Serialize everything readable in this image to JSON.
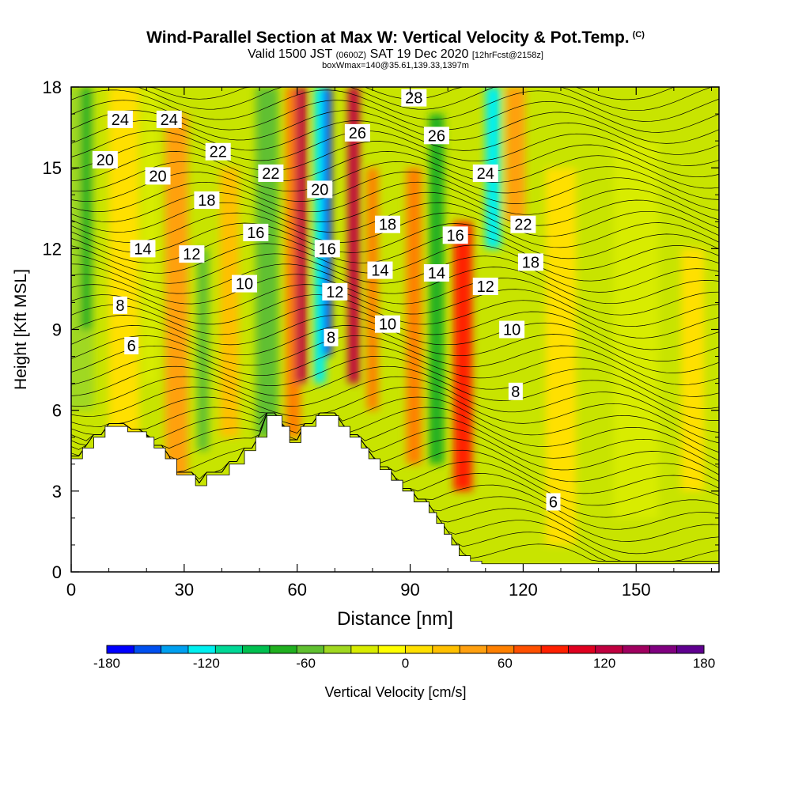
{
  "header": {
    "title": "Wind-Parallel Section at Max W: Vertical Velocity & Pot.Temp.",
    "copyright": "(C)",
    "valid_prefix": "Valid 1500 JST",
    "valid_utc": "(0600Z)",
    "valid_date": "SAT 19 Dec 2020",
    "forecast_info": "[12hrFcst@2158z]",
    "box_info": "boxWmax=140@35.61,139.33,1397m"
  },
  "chart_data": {
    "type": "heatmap",
    "title": "Wind-Parallel Section at Max W: Vertical Velocity & Pot.Temp.",
    "xlabel": "Distance [nm]",
    "ylabel": "Height [Kft MSL]",
    "xlim": [
      0,
      172
    ],
    "ylim": [
      0,
      18
    ],
    "xticks": [
      0,
      30,
      60,
      90,
      120,
      150
    ],
    "yticks": [
      0,
      3,
      6,
      9,
      12,
      15,
      18
    ],
    "colorbar": {
      "label": "Vertical Velocity [cm/s]",
      "range": [
        -180,
        180
      ],
      "tick_labels": [
        "-180",
        "-120",
        "-60",
        "0",
        "60",
        "120",
        "180"
      ],
      "colors": [
        "#0000ff",
        "#0050f0",
        "#00a0f0",
        "#00f0f0",
        "#00d896",
        "#00c050",
        "#20b020",
        "#60c030",
        "#a0d820",
        "#d8ec00",
        "#ffff00",
        "#ffe000",
        "#ffc000",
        "#ffa010",
        "#ff8000",
        "#ff5000",
        "#ff2000",
        "#e00020",
        "#c00040",
        "#a00060",
        "#800080",
        "#600090"
      ]
    },
    "vertical_velocity_columns": [
      {
        "x": 2,
        "width": 8,
        "w": -40,
        "ymin": 6,
        "ymax": 18
      },
      {
        "x": 4,
        "width": 3,
        "w": -80,
        "ymin": 9,
        "ymax": 18
      },
      {
        "x": 14,
        "width": 8,
        "w": 15,
        "ymin": 5,
        "ymax": 18
      },
      {
        "x": 21,
        "width": 4,
        "w": -30,
        "ymin": 7,
        "ymax": 18
      },
      {
        "x": 28,
        "width": 6,
        "w": 40,
        "ymin": 3.5,
        "ymax": 17
      },
      {
        "x": 35,
        "width": 3,
        "w": -50,
        "ymin": 4.5,
        "ymax": 12
      },
      {
        "x": 42,
        "width": 5,
        "w": 30,
        "ymin": 5,
        "ymax": 15
      },
      {
        "x": 52,
        "width": 6,
        "w": -60,
        "ymin": 5,
        "ymax": 18
      },
      {
        "x": 59,
        "width": 4,
        "w": 60,
        "ymin": 5,
        "ymax": 18
      },
      {
        "x": 61,
        "width": 3,
        "w": 130,
        "ymin": 7,
        "ymax": 18
      },
      {
        "x": 66,
        "width": 3,
        "w": -130,
        "ymin": 7,
        "ymax": 18
      },
      {
        "x": 68,
        "width": 2,
        "w": -180,
        "ymin": 8,
        "ymax": 18
      },
      {
        "x": 75,
        "width": 3,
        "w": 120,
        "ymin": 7,
        "ymax": 18
      },
      {
        "x": 80,
        "width": 3,
        "w": 60,
        "ymin": 6,
        "ymax": 15
      },
      {
        "x": 91,
        "width": 4,
        "w": 50,
        "ymin": 4,
        "ymax": 15
      },
      {
        "x": 97,
        "width": 4,
        "w": -70,
        "ymin": 4,
        "ymax": 17
      },
      {
        "x": 104,
        "width": 5,
        "w": 90,
        "ymin": 3,
        "ymax": 13
      },
      {
        "x": 112,
        "width": 4,
        "w": -120,
        "ymin": 12,
        "ymax": 18
      },
      {
        "x": 118,
        "width": 5,
        "w": 40,
        "ymin": 13,
        "ymax": 18
      },
      {
        "x": 130,
        "width": 8,
        "w": 15,
        "ymin": 1,
        "ymax": 15
      },
      {
        "x": 150,
        "width": 12,
        "w": -25,
        "ymin": 2,
        "ymax": 16
      },
      {
        "x": 165,
        "width": 6,
        "w": 10,
        "ymin": 3,
        "ymax": 12
      }
    ],
    "terrain": [
      [
        0,
        4.2
      ],
      [
        3,
        4.2
      ],
      [
        3,
        4.6
      ],
      [
        6,
        4.6
      ],
      [
        6,
        5.0
      ],
      [
        9,
        5.0
      ],
      [
        9,
        5.4
      ],
      [
        15,
        5.4
      ],
      [
        15,
        5.2
      ],
      [
        20,
        5.2
      ],
      [
        20,
        5.0
      ],
      [
        22,
        5.0
      ],
      [
        22,
        4.6
      ],
      [
        25,
        4.6
      ],
      [
        25,
        4.2
      ],
      [
        28,
        4.2
      ],
      [
        28,
        3.6
      ],
      [
        33,
        3.6
      ],
      [
        33,
        3.2
      ],
      [
        36,
        3.2
      ],
      [
        36,
        3.6
      ],
      [
        42,
        3.6
      ],
      [
        42,
        4.0
      ],
      [
        46,
        4.0
      ],
      [
        46,
        4.5
      ],
      [
        49,
        4.5
      ],
      [
        49,
        5.0
      ],
      [
        52,
        5.0
      ],
      [
        52,
        5.8
      ],
      [
        56,
        5.8
      ],
      [
        56,
        5.4
      ],
      [
        58,
        5.4
      ],
      [
        58,
        4.8
      ],
      [
        61,
        4.8
      ],
      [
        61,
        5.4
      ],
      [
        65,
        5.4
      ],
      [
        65,
        5.8
      ],
      [
        71,
        5.8
      ],
      [
        71,
        5.4
      ],
      [
        74,
        5.4
      ],
      [
        74,
        5.0
      ],
      [
        77,
        5.0
      ],
      [
        77,
        4.6
      ],
      [
        79,
        4.6
      ],
      [
        79,
        4.2
      ],
      [
        82,
        4.2
      ],
      [
        82,
        3.8
      ],
      [
        85,
        3.8
      ],
      [
        85,
        3.4
      ],
      [
        88,
        3.4
      ],
      [
        88,
        3.0
      ],
      [
        91,
        3.0
      ],
      [
        91,
        2.6
      ],
      [
        95,
        2.6
      ],
      [
        95,
        2.2
      ],
      [
        97,
        2.2
      ],
      [
        97,
        1.8
      ],
      [
        99,
        1.8
      ],
      [
        99,
        1.4
      ],
      [
        101,
        1.4
      ],
      [
        101,
        1.0
      ],
      [
        103,
        1.0
      ],
      [
        103,
        0.6
      ],
      [
        106,
        0.6
      ],
      [
        106,
        0.4
      ],
      [
        109,
        0.4
      ],
      [
        109,
        0.3
      ],
      [
        172,
        0.3
      ]
    ],
    "potential_temperature_labels": [
      {
        "text": "24",
        "x": 13,
        "y": 16.8
      },
      {
        "text": "24",
        "x": 26,
        "y": 16.8
      },
      {
        "text": "28",
        "x": 91,
        "y": 17.6
      },
      {
        "text": "26",
        "x": 76,
        "y": 16.3
      },
      {
        "text": "26",
        "x": 97,
        "y": 16.2
      },
      {
        "text": "20",
        "x": 9,
        "y": 15.3
      },
      {
        "text": "22",
        "x": 39,
        "y": 15.6
      },
      {
        "text": "20",
        "x": 23,
        "y": 14.7
      },
      {
        "text": "22",
        "x": 53,
        "y": 14.8
      },
      {
        "text": "24",
        "x": 110,
        "y": 14.8
      },
      {
        "text": "20",
        "x": 66,
        "y": 14.2
      },
      {
        "text": "18",
        "x": 36,
        "y": 13.8
      },
      {
        "text": "18",
        "x": 84,
        "y": 12.9
      },
      {
        "text": "22",
        "x": 120,
        "y": 12.9
      },
      {
        "text": "16",
        "x": 49,
        "y": 12.6
      },
      {
        "text": "16",
        "x": 102,
        "y": 12.5
      },
      {
        "text": "14",
        "x": 19,
        "y": 12.0
      },
      {
        "text": "12",
        "x": 32,
        "y": 11.8
      },
      {
        "text": "16",
        "x": 68,
        "y": 12.0
      },
      {
        "text": "18",
        "x": 122,
        "y": 11.5
      },
      {
        "text": "14",
        "x": 82,
        "y": 11.2
      },
      {
        "text": "14",
        "x": 97,
        "y": 11.1
      },
      {
        "text": "10",
        "x": 46,
        "y": 10.7
      },
      {
        "text": "12",
        "x": 70,
        "y": 10.4
      },
      {
        "text": "12",
        "x": 110,
        "y": 10.6
      },
      {
        "text": "8",
        "x": 13,
        "y": 9.9
      },
      {
        "text": "10",
        "x": 84,
        "y": 9.2
      },
      {
        "text": "10",
        "x": 117,
        "y": 9.0
      },
      {
        "text": "6",
        "x": 16,
        "y": 8.4
      },
      {
        "text": "8",
        "x": 69,
        "y": 8.7
      },
      {
        "text": "8",
        "x": 118,
        "y": 6.7
      },
      {
        "text": "6",
        "x": 128,
        "y": 2.6
      }
    ]
  }
}
